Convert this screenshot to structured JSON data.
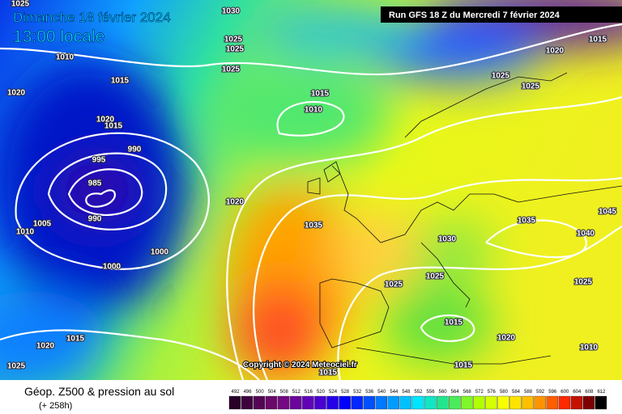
{
  "header": {
    "date": "Dimanche 18 février 2024",
    "time": "13:00 locale",
    "run": "Run GFS 18 Z du Mercredi 7 février 2024"
  },
  "copyright": "Copyright © 2024 Meteociel.fr",
  "footer": {
    "title": "Géop. Z500 & pression au sol",
    "lead": "(+ 258h)"
  },
  "isobar_labels": [
    "1025",
    "1030",
    "1015",
    "1020",
    "1010",
    "1025",
    "1025",
    "1025",
    "1015",
    "1020",
    "1015",
    "1010",
    "1025",
    "1025",
    "1020",
    "1015",
    "990",
    "995",
    "985",
    "990",
    "1005",
    "1010",
    "1020",
    "1035",
    "1030",
    "1035",
    "1045",
    "1040",
    "1000",
    "1000",
    "1025",
    "1025",
    "1025",
    "1015",
    "1020",
    "1015",
    "1020",
    "1025",
    "1015",
    "1015",
    "1010"
  ],
  "scale": [
    492,
    496,
    500,
    504,
    508,
    512,
    516,
    520,
    524,
    528,
    532,
    536,
    540,
    544,
    548,
    552,
    556,
    560,
    564,
    568,
    572,
    576,
    580,
    584,
    588,
    592,
    596,
    600,
    604,
    608,
    612
  ]
}
